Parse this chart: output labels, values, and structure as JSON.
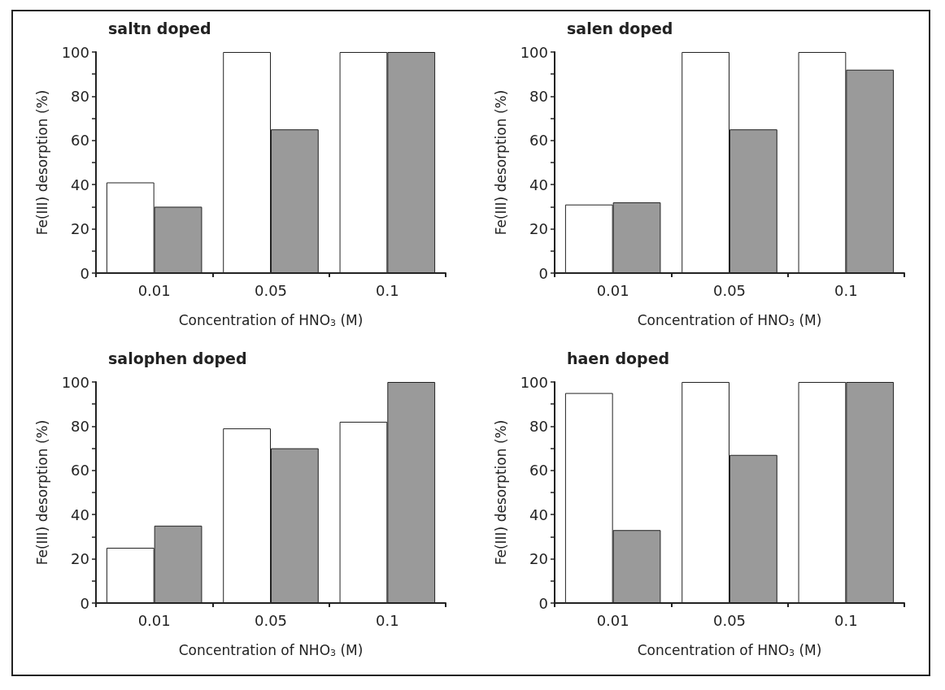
{
  "chart_data": [
    {
      "type": "bar",
      "title": "saltn doped",
      "xlabel": "Concentration of HNO$_{3}$ (M)",
      "ylabel": "Fe(III) desorption (%)",
      "categories": [
        "0.01",
        "0.05",
        "0.1"
      ],
      "series": [
        {
          "color": "#ffffff",
          "values": [
            41,
            100,
            100
          ]
        },
        {
          "color": "#9a9a9a",
          "values": [
            30,
            65,
            100
          ]
        }
      ],
      "ylim": [
        0,
        100
      ],
      "yticks": [
        0,
        {
          "value": 10,
          "label": null
        },
        20,
        {
          "value": 30,
          "label": null
        },
        40,
        {
          "value": 50,
          "label": null
        },
        60,
        {
          "value": 70,
          "label": null
        },
        80,
        {
          "value": 90,
          "label": null
        },
        100
      ],
      "grid": false
    },
    {
      "type": "bar",
      "title": "salen doped",
      "xlabel": "Concentration of HNO$_{3}$ (M)",
      "ylabel": "Fe(III) desorption (%)",
      "categories": [
        "0.01",
        "0.05",
        "0.1"
      ],
      "series": [
        {
          "color": "#ffffff",
          "values": [
            31,
            100,
            100
          ]
        },
        {
          "color": "#9a9a9a",
          "values": [
            32,
            65,
            92
          ]
        }
      ],
      "ylim": [
        0,
        100
      ],
      "yticks": [
        0,
        {
          "value": 10,
          "label": null
        },
        20,
        {
          "value": 30,
          "label": null
        },
        40,
        {
          "value": 50,
          "label": null
        },
        60,
        {
          "value": 70,
          "label": null
        },
        80,
        {
          "value": 90,
          "label": null
        },
        100
      ],
      "grid": false
    },
    {
      "type": "bar",
      "title": "salophen doped",
      "xlabel": "Concentration of NHO$_{3}$ (M)",
      "ylabel": "Fe(III) desorption (%)",
      "categories": [
        "0.01",
        "0.05",
        "0.1"
      ],
      "series": [
        {
          "color": "#ffffff",
          "values": [
            25,
            79,
            82
          ]
        },
        {
          "color": "#9a9a9a",
          "values": [
            35,
            70,
            100
          ]
        }
      ],
      "ylim": [
        0,
        100
      ],
      "yticks": [
        0,
        {
          "value": 10,
          "label": null
        },
        20,
        {
          "value": 30,
          "label": null
        },
        40,
        {
          "value": 50,
          "label": null
        },
        60,
        {
          "value": 70,
          "label": null
        },
        80,
        {
          "value": 90,
          "label": null
        },
        100
      ],
      "grid": false
    },
    {
      "type": "bar",
      "title": "haen doped",
      "xlabel": "Concentration of HNO$_{3}$ (M)",
      "ylabel": "Fe(III) desorption (%)",
      "categories": [
        "0.01",
        "0.05",
        "0.1"
      ],
      "series": [
        {
          "color": "#ffffff",
          "values": [
            95,
            100,
            100
          ]
        },
        {
          "color": "#9a9a9a",
          "values": [
            33,
            67,
            100
          ]
        }
      ],
      "ylim": [
        0,
        100
      ],
      "yticks": [
        0,
        {
          "value": 10,
          "label": null
        },
        20,
        {
          "value": 30,
          "label": null
        },
        40,
        {
          "value": 50,
          "label": null
        },
        60,
        {
          "value": 70,
          "label": null
        },
        80,
        {
          "value": 90,
          "label": null
        },
        100
      ],
      "grid": false
    }
  ]
}
